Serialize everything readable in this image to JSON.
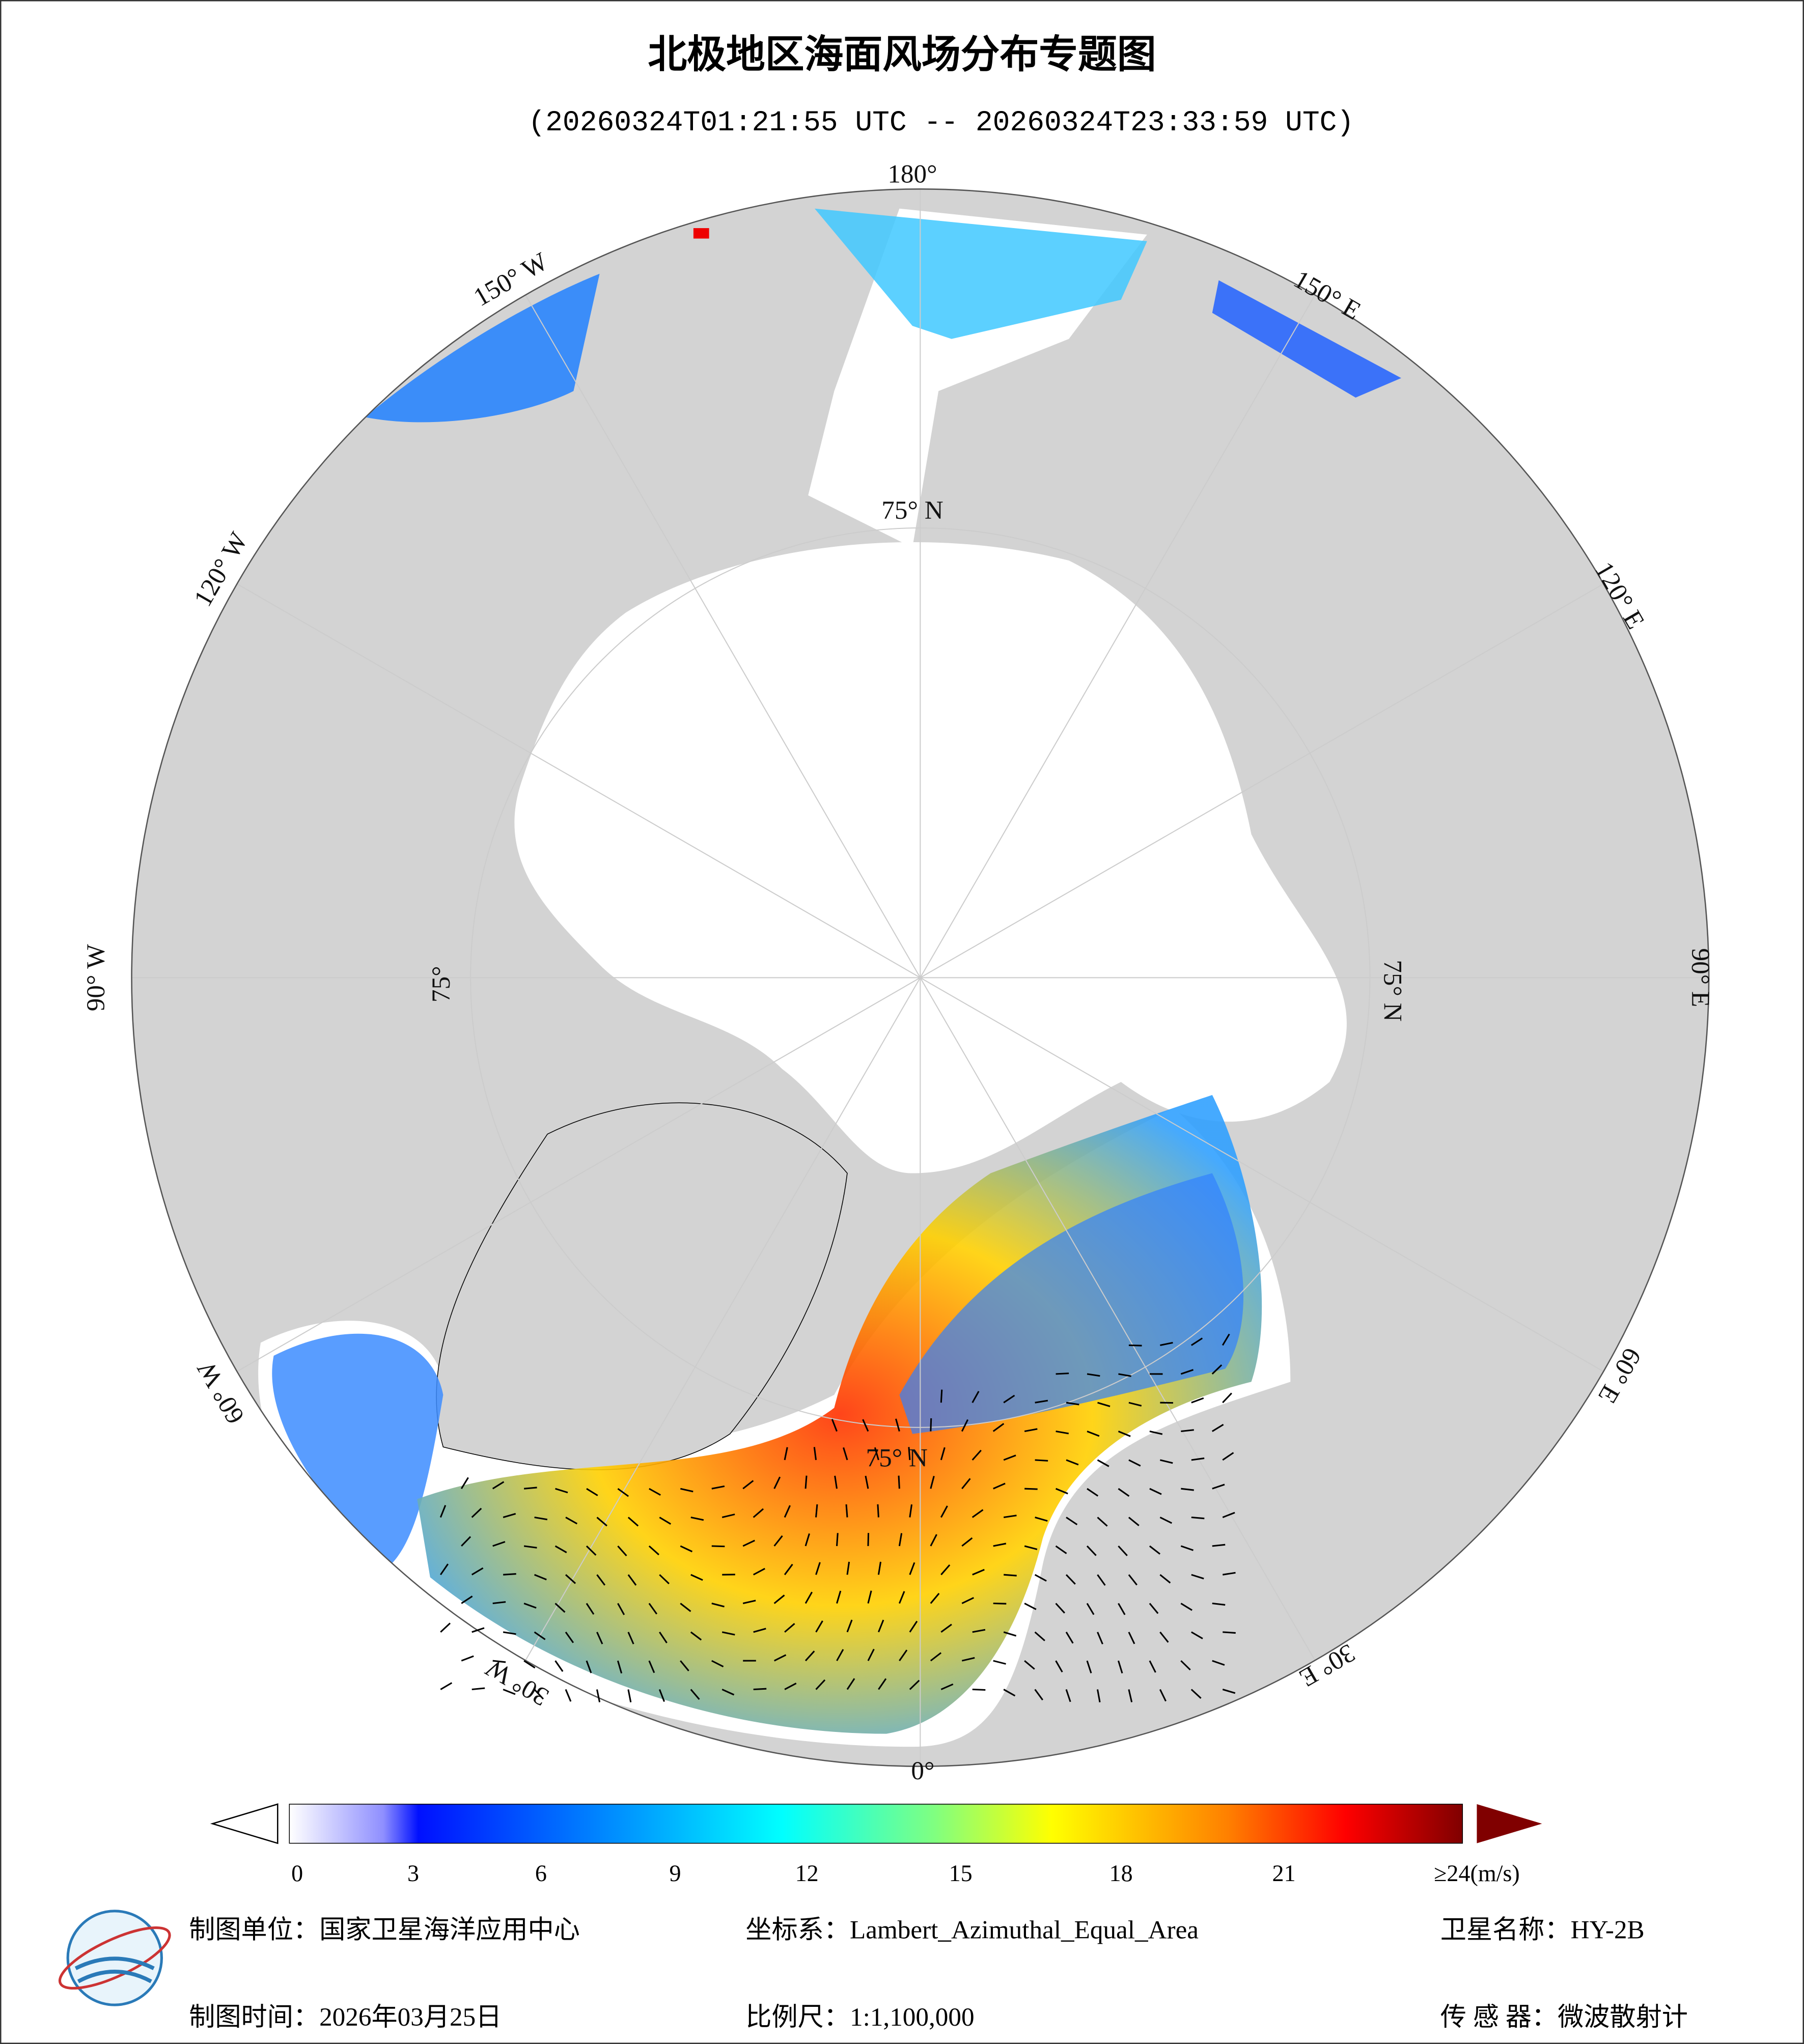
{
  "header": {
    "title": "北极地区海面风场分布专题图",
    "subtitle": "(20260324T01:21:55 UTC -- 20260324T23:33:59 UTC)"
  },
  "map": {
    "longitude_labels": [
      "180°",
      "150° W",
      "120° W",
      "90° W",
      "60° W",
      "30° W",
      "0°",
      "30° E",
      "60° E",
      "90° E",
      "120° E",
      "150° E"
    ],
    "latitude_labels": [
      "75° N",
      "75° N",
      "75° N",
      "75°"
    ]
  },
  "colorbar": {
    "ticks": [
      0,
      3,
      6,
      9,
      12,
      15,
      18,
      21
    ],
    "max_label": "≥24(m/s)"
  },
  "footer": {
    "unit": "制图单位：国家卫星海洋应用中心",
    "crs": "坐标系：Lambert_Azimuthal_Equal_Area",
    "satellite": "卫星名称：HY-2B",
    "date": "制图时间：2026年03月25日",
    "scale": "比例尺：1:1,100,000",
    "sensor": "传 感 器：微波散射计"
  }
}
